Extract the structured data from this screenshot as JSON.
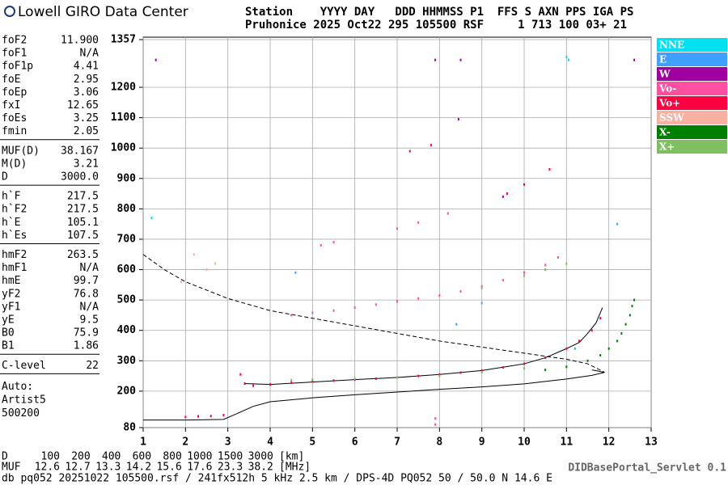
{
  "header": {
    "logo": "Lowell GIRO Data Center",
    "row1": "Station    YYYY DAY   DDD HHMMSS P1  FFS S AXN PPS IGA PS",
    "row2": "Pruhonice 2025 Oct22 295 105500 RSF     1 713 100 03+ 21"
  },
  "panel": {
    "groups": [
      [
        [
          "foF2",
          "11.900"
        ],
        [
          "foF1",
          "N/A"
        ],
        [
          "foF1p",
          "4.41"
        ],
        [
          "foE",
          "2.95"
        ],
        [
          "foEp",
          "3.06"
        ],
        [
          "fxI",
          "12.65"
        ],
        [
          "foEs",
          "3.25"
        ],
        [
          "fmin",
          "2.05"
        ]
      ],
      [
        [
          "MUF(D)",
          "38.167"
        ],
        [
          "M(D)",
          "3.21"
        ],
        [
          "D",
          "3000.0"
        ]
      ],
      [
        [
          "h`F",
          "217.5"
        ],
        [
          "h`F2",
          "217.5"
        ],
        [
          "h`E",
          "105.1"
        ],
        [
          "h`Es",
          "107.5"
        ]
      ],
      [
        [
          "hmF2",
          "263.5"
        ],
        [
          "hmF1",
          "N/A"
        ],
        [
          "hmE",
          "99.7"
        ],
        [
          "yF2",
          "76.8"
        ],
        [
          "yF1",
          "N/A"
        ],
        [
          "yE",
          "9.5"
        ],
        [
          "B0",
          "75.9"
        ],
        [
          "B1",
          "1.86"
        ]
      ],
      [
        [
          "C-level",
          "22"
        ]
      ]
    ],
    "notes": [
      "Auto:",
      "Artist5",
      "500200"
    ]
  },
  "muf_table": {
    "d_label": "D",
    "distances": [
      100,
      200,
      400,
      600,
      800,
      1000,
      1500,
      3000
    ],
    "d_unit": "[km]",
    "muf_label": "MUF",
    "muf": [
      12.6,
      12.7,
      13.3,
      14.2,
      15.6,
      17.6,
      23.3,
      38.2
    ],
    "muf_unit": "[MHz]"
  },
  "footer": {
    "source": "db pq052 20251022 105500.rsf / 241fx512h 5 kHz 2.5 km / DPS-4D PQ052 50 / 50.0 N 14.6 E",
    "servlet": "DIDBasePortal_Servlet 0.1"
  },
  "chart_data": {
    "type": "scatter",
    "xlim": [
      1,
      13
    ],
    "xticks": [
      1,
      2,
      3,
      4,
      5,
      6,
      7,
      8,
      9,
      10,
      11,
      12,
      13
    ],
    "ylim": [
      80,
      1357
    ],
    "yticks": [
      80,
      200,
      300,
      400,
      500,
      600,
      700,
      800,
      900,
      1000,
      1100,
      1200,
      1357
    ],
    "grid": true,
    "legend": "right",
    "series": [
      {
        "name": "NNE",
        "color": "#00e0f0",
        "x": [
          11.0,
          11.05,
          1.2
        ],
        "values": [
          1300,
          1290,
          770
        ]
      },
      {
        "name": "E",
        "color": "#3fa0ff",
        "x": [
          8.4,
          4.6,
          12.2,
          9.0,
          11.2
        ],
        "values": [
          420,
          590,
          750,
          490,
          340
        ]
      },
      {
        "name": "W",
        "color": "#a000a0",
        "x": [
          1.3,
          7.9,
          8.5,
          12.6,
          8.45,
          9.5
        ],
        "values": [
          1290,
          1290,
          1290,
          1290,
          1095,
          840
        ]
      },
      {
        "name": "Vo-",
        "color": "#ff4fa0",
        "x": [
          4.5,
          5.0,
          5.5,
          6.0,
          6.5,
          7.0,
          7.5,
          8.0,
          8.5,
          9.0,
          9.5,
          10.0,
          10.5,
          10.8,
          5.2,
          5.5,
          7.0,
          7.5,
          8.2,
          7.9,
          7.9
        ],
        "values": [
          450,
          458,
          465,
          475,
          485,
          495,
          505,
          515,
          528,
          545,
          565,
          590,
          615,
          640,
          680,
          690,
          735,
          755,
          785,
          90,
          110
        ]
      },
      {
        "name": "Vo+",
        "color": "#ff0040",
        "x": [
          2.0,
          2.3,
          2.6,
          2.9,
          3.3,
          3.4,
          3.6,
          4.0,
          4.5,
          5.0,
          5.5,
          6.0,
          6.5,
          7.0,
          7.5,
          8.0,
          8.5,
          9.0,
          9.5,
          10.0,
          10.5,
          11.0,
          11.3,
          11.6,
          11.8,
          7.3,
          7.8,
          9.6,
          10.0,
          10.6
        ],
        "values": [
          115,
          117,
          118,
          121,
          255,
          225,
          218,
          222,
          228,
          232,
          235,
          238,
          241,
          245,
          250,
          255,
          261,
          268,
          278,
          290,
          310,
          340,
          365,
          400,
          440,
          990,
          1010,
          850,
          880,
          930
        ]
      },
      {
        "name": "SSW",
        "color": "#f8b0a0",
        "x": [
          2.2,
          2.5,
          2.7,
          1.9
        ],
        "values": [
          650,
          600,
          620,
          560
        ]
      },
      {
        "name": "X-",
        "color": "#007f00",
        "x": [
          10.5,
          11.0,
          11.5,
          11.8,
          12.0,
          12.2,
          12.3,
          12.4,
          12.5,
          12.55,
          12.6
        ],
        "values": [
          270,
          280,
          300,
          318,
          340,
          365,
          390,
          420,
          450,
          480,
          500
        ]
      },
      {
        "name": "X+",
        "color": "#7fbf5f",
        "x": [
          4.5,
          5.0,
          6.0,
          7.0,
          8.0,
          9.0,
          10.0,
          9.0,
          10.0,
          10.5,
          11.0
        ],
        "values": [
          236,
          238,
          241,
          245,
          250,
          262,
          275,
          540,
          580,
          600,
          620
        ]
      }
    ],
    "curves": [
      {
        "color": "#000000",
        "x": [
          3.4,
          4.0,
          5.0,
          6.0,
          7.0,
          8.0,
          9.0,
          10.0,
          10.5,
          11.0,
          11.3,
          11.5,
          11.7,
          11.85
        ],
        "values": [
          225,
          222,
          230,
          238,
          245,
          255,
          268,
          290,
          310,
          340,
          360,
          390,
          425,
          475
        ]
      },
      {
        "color": "#000000",
        "x": [
          1.0,
          2.0,
          2.9,
          3.2,
          3.6,
          4.0,
          5.0,
          6.0,
          7.0,
          8.0,
          9.0,
          10.0,
          11.0,
          11.6,
          11.9,
          11.6
        ],
        "values": [
          105,
          105,
          107,
          125,
          150,
          165,
          178,
          188,
          197,
          206,
          214,
          224,
          240,
          252,
          262,
          270
        ]
      },
      {
        "color": "#000000",
        "dashed": true,
        "x": [
          1.0,
          1.5,
          2.0,
          3.0,
          4.0,
          5.0,
          6.0,
          7.0,
          8.0,
          9.0,
          10.0,
          11.0,
          11.5,
          11.9
        ],
        "values": [
          650,
          600,
          560,
          505,
          465,
          440,
          415,
          390,
          365,
          345,
          325,
          305,
          290,
          262
        ]
      }
    ]
  }
}
